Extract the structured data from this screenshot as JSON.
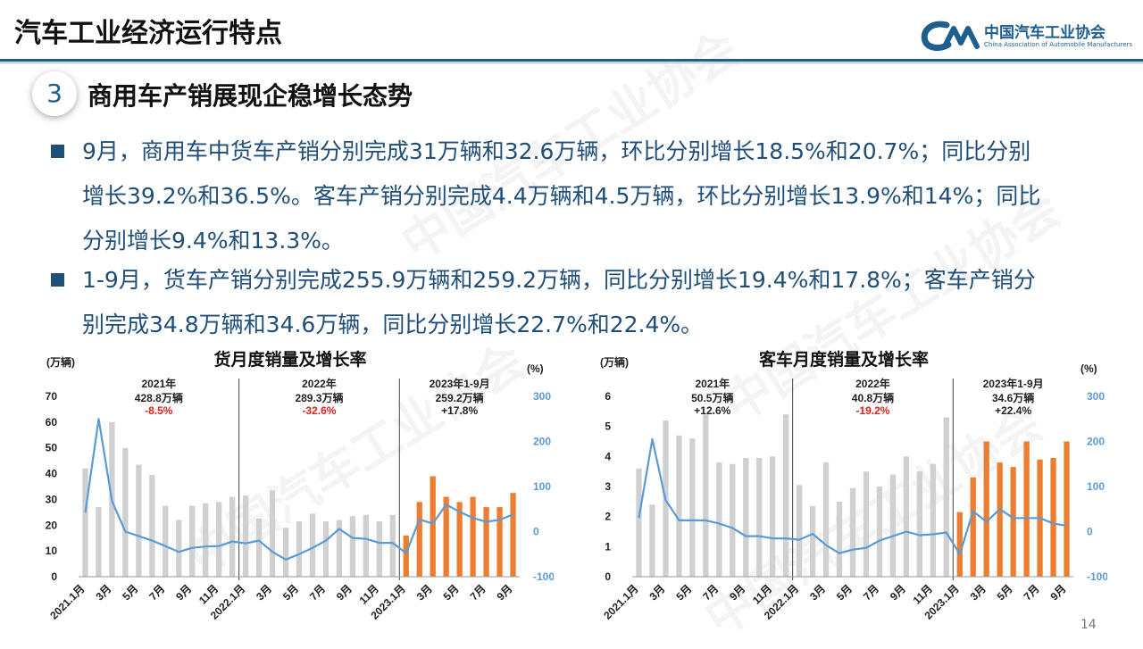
{
  "header": {
    "title": "汽车工业经济运行特点",
    "logo_cn": "中国汽车工业协会",
    "logo_en": "China Association of Automobile Manufacturers"
  },
  "section": {
    "number": "3",
    "title": "商用车产销展现企稳增长态势"
  },
  "bullets": [
    {
      "lines": [
        "9月，商用车中货车产销分别完成31万辆和32.6万辆，环比分别增长18.5%和20.7%；同比分别",
        "增长39.2%和36.5%。客车产销分别完成4.4万辆和4.5万辆，环比分别增长13.9%和14%；同比",
        "分别增长9.4%和13.3%。"
      ]
    },
    {
      "lines": [
        "1-9月，货车产销分别完成255.9万辆和259.2万辆，同比分别增长19.4%和17.8%；客车产销分",
        "别完成34.8万辆和34.6万辆，同比分别增长22.7%和22.4%。"
      ]
    }
  ],
  "page_number": "14",
  "colors": {
    "bar_past": "#d0d0d0",
    "bar_2023": "#ed7d31",
    "line": "#5b9bd5",
    "negative": "#e0201b",
    "text_blue": "#1f4e79"
  },
  "chart_data": [
    {
      "type": "bar+line",
      "title": "货月度销量及增长率",
      "y_unit_left": "(万辆)",
      "y_unit_right": "(%)",
      "ylim_left": [
        0,
        70
      ],
      "yticks_left": [
        0,
        10,
        20,
        30,
        40,
        50,
        60,
        70
      ],
      "ylim_right": [
        -100,
        300
      ],
      "yticks_right": [
        -100,
        0,
        100,
        200,
        300
      ],
      "x_tick_labels": [
        "2021.1月",
        "3月",
        "5月",
        "7月",
        "9月",
        "11月",
        "2022.1月",
        "3月",
        "5月",
        "7月",
        "9月",
        "11月",
        "2023.1月",
        "3月",
        "5月",
        "7月",
        "9月"
      ],
      "categories": [
        "2021.1",
        "2021.2",
        "2021.3",
        "2021.4",
        "2021.5",
        "2021.6",
        "2021.7",
        "2021.8",
        "2021.9",
        "2021.10",
        "2021.11",
        "2021.12",
        "2022.1",
        "2022.2",
        "2022.3",
        "2022.4",
        "2022.5",
        "2022.6",
        "2022.7",
        "2022.8",
        "2022.9",
        "2022.10",
        "2022.11",
        "2022.12",
        "2023.1",
        "2023.2",
        "2023.3",
        "2023.4",
        "2023.5",
        "2023.6",
        "2023.7",
        "2023.8",
        "2023.9"
      ],
      "sales": [
        42,
        27,
        60,
        50,
        43.5,
        39.5,
        27.5,
        22,
        27.5,
        28.5,
        29,
        31,
        31.5,
        22.5,
        33.5,
        19,
        21.5,
        24.5,
        21.5,
        22,
        23.5,
        24,
        21.5,
        24,
        16,
        29,
        39,
        31,
        29,
        31,
        27,
        27,
        32.5
      ],
      "growth": [
        42,
        250,
        68,
        0,
        -10,
        -20,
        -32,
        -45,
        -36,
        -33,
        -32,
        -22,
        -26,
        -20,
        -45,
        -62,
        -50,
        -36,
        -20,
        6,
        -14,
        -16,
        -25,
        -25,
        -48,
        27,
        18,
        60,
        44,
        30,
        22,
        26,
        38
      ],
      "periods": [
        {
          "year": "2021年",
          "total": "428.8万辆",
          "change": "-8.5%",
          "negative": true,
          "start": 0,
          "end": 11
        },
        {
          "year": "2022年",
          "total": "289.3万辆",
          "change": "-32.6%",
          "negative": true,
          "start": 12,
          "end": 23
        },
        {
          "year": "2023年1-9月",
          "total": "259.2万辆",
          "change": "+17.8%",
          "negative": false,
          "start": 24,
          "end": 32
        }
      ]
    },
    {
      "type": "bar+line",
      "title": "客车月度销量及增长率",
      "y_unit_left": "(万辆)",
      "y_unit_right": "(%)",
      "ylim_left": [
        0,
        6
      ],
      "yticks_left": [
        0,
        1,
        2,
        3,
        4,
        5,
        6
      ],
      "ylim_right": [
        -100,
        300
      ],
      "yticks_right": [
        -100,
        0,
        100,
        200,
        300
      ],
      "x_tick_labels": [
        "2021.1月",
        "3月",
        "5月",
        "7月",
        "9月",
        "11月",
        "2022.1月",
        "3月",
        "5月",
        "7月",
        "9月",
        "11月",
        "2023.1月",
        "3月",
        "5月",
        "7月",
        "9月"
      ],
      "categories": [
        "2021.1",
        "2021.2",
        "2021.3",
        "2021.4",
        "2021.5",
        "2021.6",
        "2021.7",
        "2021.8",
        "2021.9",
        "2021.10",
        "2021.11",
        "2021.12",
        "2022.1",
        "2022.2",
        "2022.3",
        "2022.4",
        "2022.5",
        "2022.6",
        "2022.7",
        "2022.8",
        "2022.9",
        "2022.10",
        "2022.11",
        "2022.12",
        "2023.1",
        "2023.2",
        "2023.3",
        "2023.4",
        "2023.5",
        "2023.6",
        "2023.7",
        "2023.8",
        "2023.9"
      ],
      "sales": [
        3.6,
        2.4,
        5.2,
        4.7,
        4.6,
        5.4,
        3.8,
        3.75,
        3.95,
        3.95,
        4.0,
        5.4,
        3.05,
        2.35,
        3.8,
        2.5,
        2.95,
        3.5,
        3.0,
        3.4,
        4.0,
        3.5,
        3.75,
        5.3,
        2.15,
        3.3,
        4.5,
        3.8,
        3.65,
        4.5,
        3.9,
        3.95,
        4.5
      ],
      "growth": [
        30,
        205,
        70,
        25,
        25,
        25,
        18,
        8,
        -10,
        -10,
        -15,
        -15,
        -18,
        -5,
        -30,
        -48,
        -40,
        -36,
        -20,
        -10,
        0,
        -8,
        -6,
        -2,
        -50,
        45,
        22,
        50,
        30,
        30,
        30,
        18,
        13
      ],
      "periods": [
        {
          "year": "2021年",
          "total": "50.5万辆",
          "change": "+12.6%",
          "negative": false,
          "start": 0,
          "end": 11
        },
        {
          "year": "2022年",
          "total": "40.8万辆",
          "change": "-19.2%",
          "negative": true,
          "start": 12,
          "end": 23
        },
        {
          "year": "2023年1-9月",
          "total": "34.6万辆",
          "change": "+22.4%",
          "negative": false,
          "start": 24,
          "end": 32
        }
      ]
    }
  ]
}
